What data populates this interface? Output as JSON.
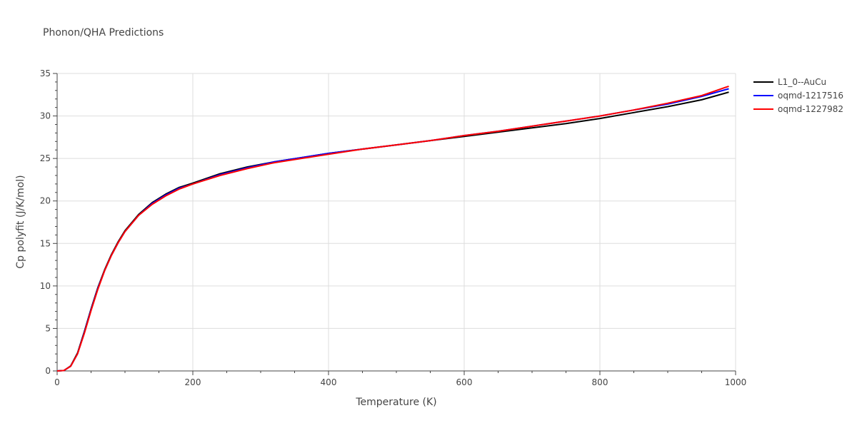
{
  "chart_data": {
    "type": "line",
    "title": "Phonon/QHA Predictions",
    "xlabel": "Temperature (K)",
    "ylabel": "Cp polyfit (J/K/mol)",
    "xlim": [
      0,
      1000
    ],
    "ylim": [
      0,
      35
    ],
    "xticks": [
      0,
      200,
      400,
      600,
      800,
      1000
    ],
    "yticks": [
      0,
      5,
      10,
      15,
      20,
      25,
      30,
      35
    ],
    "grid": true,
    "legend_position": "top-right",
    "series": [
      {
        "name": "L1_0--AuCu",
        "color": "#000000",
        "x": [
          0,
          10,
          20,
          30,
          40,
          50,
          60,
          70,
          80,
          90,
          100,
          120,
          140,
          160,
          180,
          200,
          240,
          280,
          320,
          360,
          400,
          450,
          500,
          550,
          600,
          650,
          700,
          750,
          800,
          850,
          900,
          950,
          990
        ],
        "y": [
          0,
          0.05,
          0.6,
          2.1,
          4.6,
          7.3,
          9.8,
          11.9,
          13.7,
          15.2,
          16.5,
          18.4,
          19.8,
          20.8,
          21.6,
          22.1,
          23.2,
          24.0,
          24.6,
          25.1,
          25.6,
          26.1,
          26.6,
          27.1,
          27.6,
          28.1,
          28.6,
          29.1,
          29.7,
          30.4,
          31.1,
          31.9,
          32.8
        ]
      },
      {
        "name": "oqmd-1217516",
        "color": "#0000ff",
        "x": [
          0,
          10,
          20,
          30,
          40,
          50,
          60,
          70,
          80,
          90,
          100,
          120,
          140,
          160,
          180,
          200,
          240,
          280,
          320,
          360,
          400,
          450,
          500,
          550,
          600,
          650,
          700,
          750,
          800,
          850,
          900,
          950,
          990
        ],
        "y": [
          0,
          0.05,
          0.55,
          2.0,
          4.5,
          7.2,
          9.7,
          11.8,
          13.6,
          15.1,
          16.4,
          18.3,
          19.7,
          20.7,
          21.5,
          22.0,
          23.1,
          23.9,
          24.6,
          25.1,
          25.6,
          26.1,
          26.6,
          27.1,
          27.7,
          28.2,
          28.8,
          29.4,
          30.0,
          30.7,
          31.4,
          32.3,
          33.2
        ]
      },
      {
        "name": "oqmd-1227982",
        "color": "#ff0000",
        "x": [
          0,
          10,
          20,
          30,
          40,
          50,
          60,
          70,
          80,
          90,
          100,
          120,
          140,
          160,
          180,
          200,
          240,
          280,
          320,
          360,
          400,
          450,
          500,
          550,
          600,
          650,
          700,
          750,
          800,
          850,
          900,
          950,
          990
        ],
        "y": [
          0,
          0.05,
          0.55,
          2.0,
          4.4,
          7.1,
          9.6,
          11.8,
          13.6,
          15.1,
          16.4,
          18.3,
          19.6,
          20.6,
          21.4,
          22.0,
          23.0,
          23.8,
          24.5,
          25.0,
          25.5,
          26.1,
          26.6,
          27.1,
          27.7,
          28.2,
          28.8,
          29.4,
          30.0,
          30.7,
          31.5,
          32.4,
          33.5
        ]
      }
    ]
  }
}
